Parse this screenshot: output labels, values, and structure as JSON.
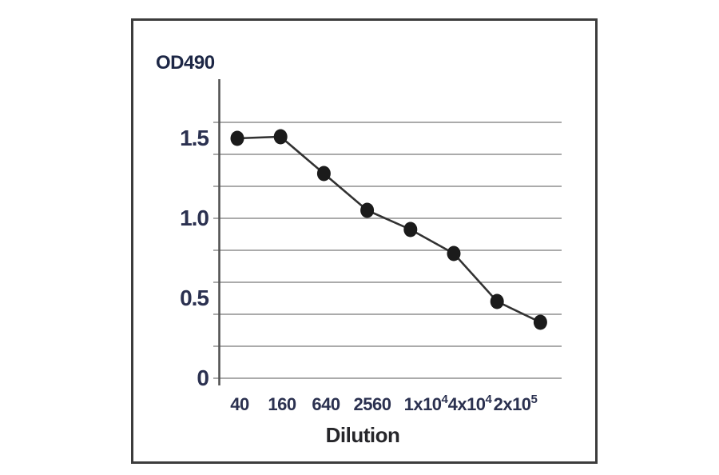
{
  "chart_data": {
    "type": "line",
    "title": "",
    "ylabel": "OD490",
    "xlabel": "Dilution",
    "x_tick_labels": [
      "40",
      "160",
      "640",
      "2560",
      "1x10⁴",
      "4x10⁴",
      "2x10⁵"
    ],
    "y_tick_labels": [
      "0",
      "0.5",
      "1.0",
      "1.5"
    ],
    "y_tick_values": [
      0,
      0.5,
      1.0,
      1.5
    ],
    "gridline_values": [
      0,
      0.2,
      0.4,
      0.6,
      0.8,
      1.0,
      1.2,
      1.4,
      1.6
    ],
    "ylim": [
      0,
      1.7
    ],
    "grid": "horizontal",
    "legend": "none",
    "series": [
      {
        "name": "OD490",
        "marker": "filled-ellipse",
        "values": [
          1.5,
          1.51,
          1.28,
          1.05,
          0.93,
          0.78,
          0.48,
          0.35
        ]
      }
    ]
  },
  "colors": {
    "background": "#ffffff",
    "frame_border": "#3c3c3c",
    "gridline": "#8f8f8f",
    "axis": "#4f4f4f",
    "series_line": "#323232",
    "marker_fill": "#1b1b1b",
    "tick_label_text": "#2b3150",
    "y_axis_title_text": "#1d2746",
    "x_axis_title_text": "#26262a"
  }
}
